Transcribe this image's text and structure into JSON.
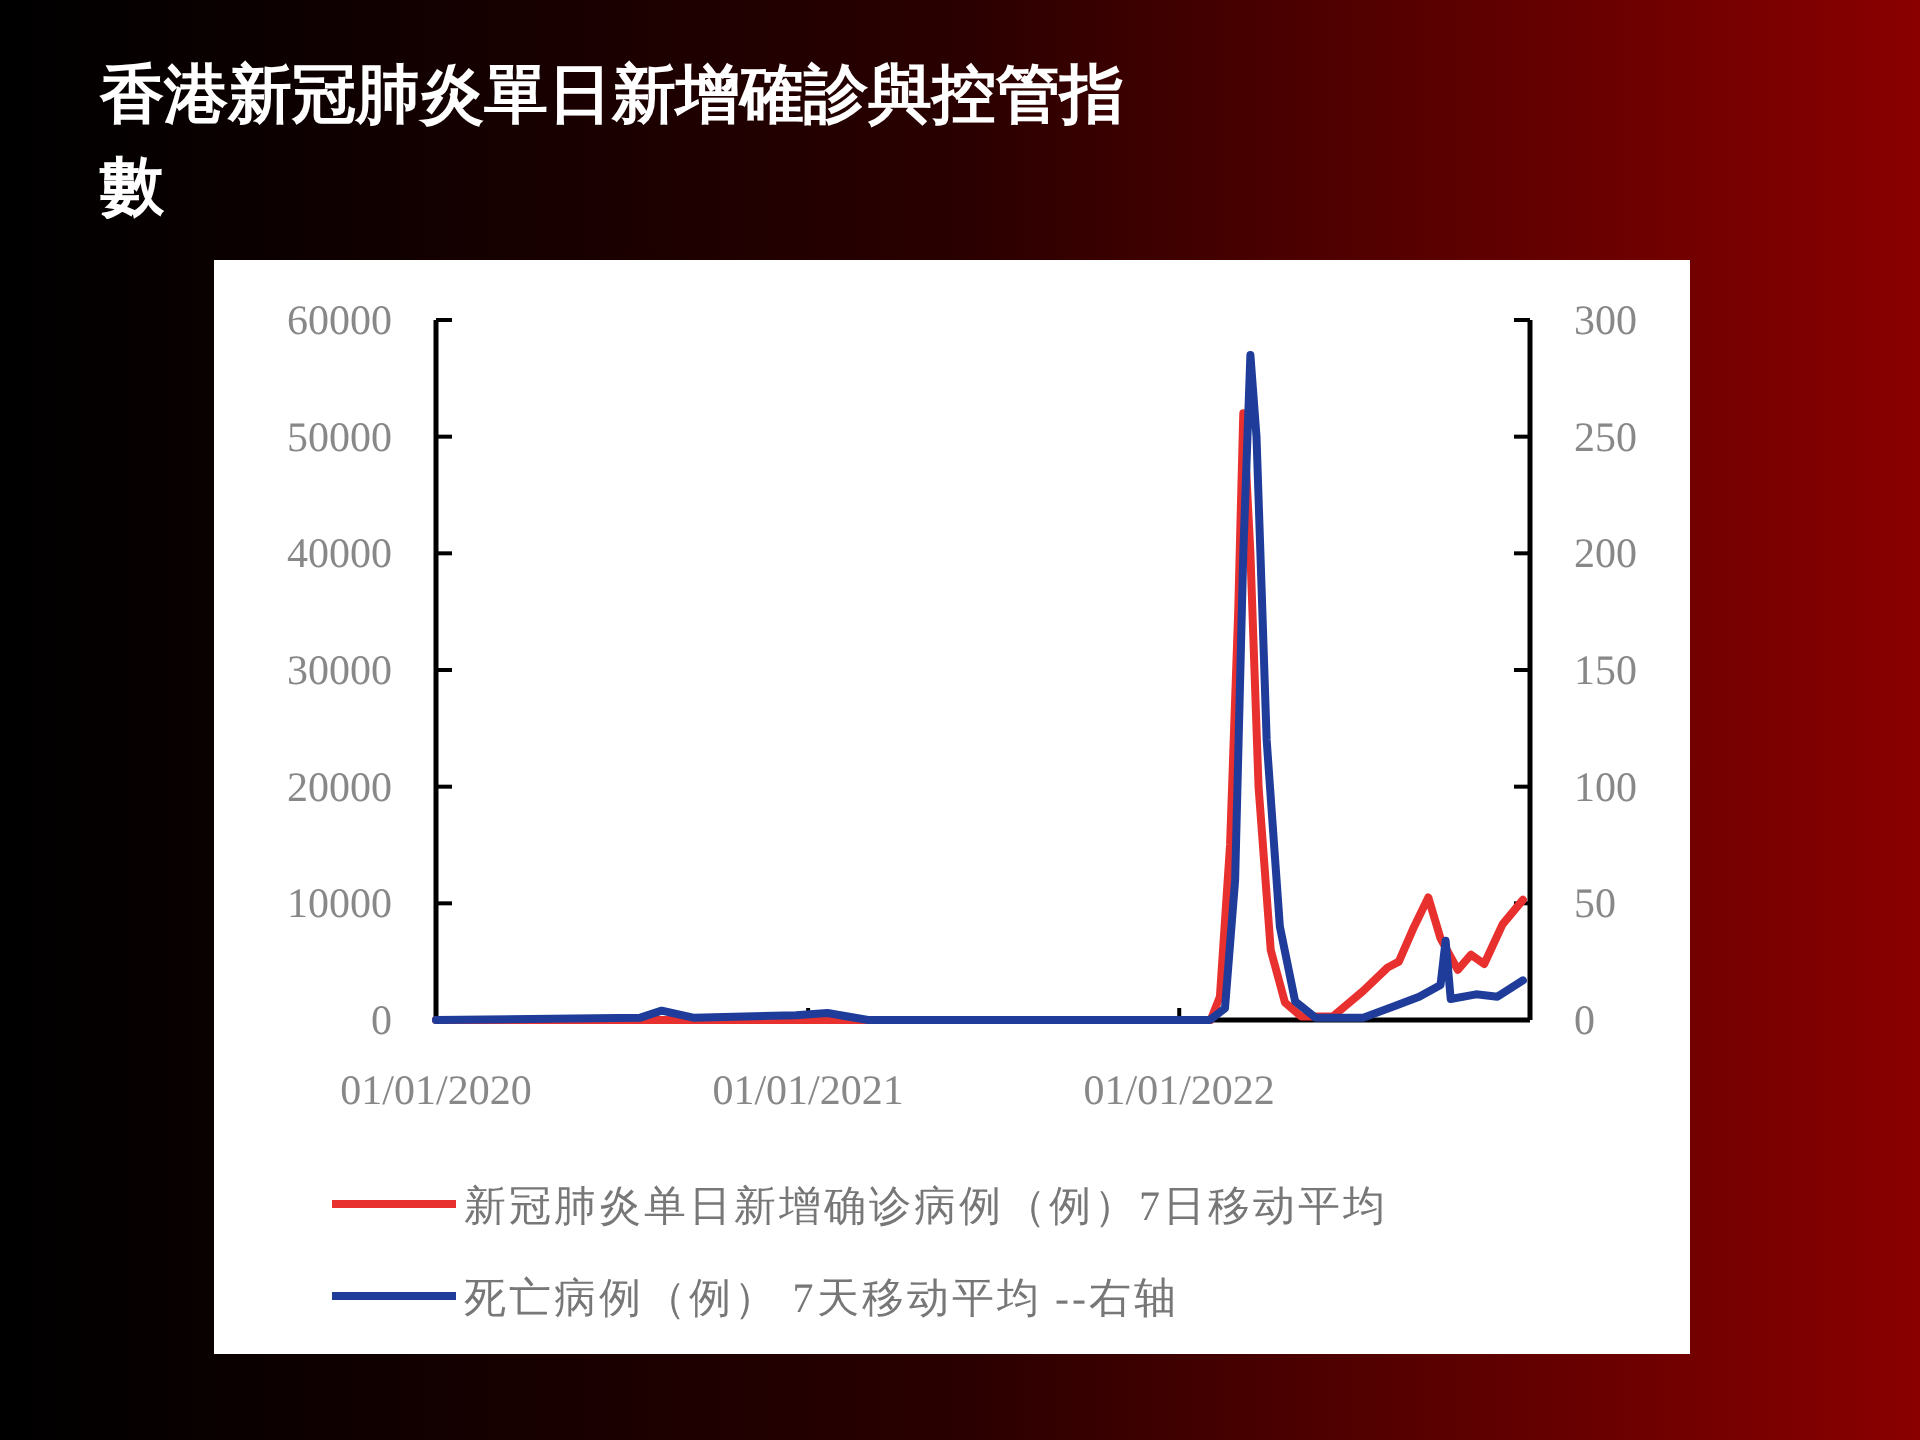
{
  "chart_data": {
    "type": "line",
    "title": "香港新冠肺炎單日新增確診與控管指數",
    "xlim": [
      "2020-01-01",
      "2022-12-12"
    ],
    "xticks": [
      {
        "value": "2020-01-01",
        "label": "01/01/2020"
      },
      {
        "value": "2021-01-01",
        "label": "01/01/2021"
      },
      {
        "value": "2022-01-01",
        "label": "01/01/2022"
      }
    ],
    "ylim": [
      0,
      60000
    ],
    "yticks": [
      0,
      10000,
      20000,
      30000,
      40000,
      50000,
      60000
    ],
    "y2lim": [
      0,
      300
    ],
    "y2ticks": [
      0,
      50,
      100,
      150,
      200,
      250,
      300
    ],
    "legend": "bottom",
    "grid": false,
    "marker": "none",
    "line_style": "solid",
    "series": [
      {
        "name": "新冠肺炎单日新增确诊病例（例）7日移动平均",
        "color": "#e8312f",
        "x": [
          "2020-01-01",
          "2020-07-01",
          "2020-08-01",
          "2020-09-01",
          "2020-12-10",
          "2021-01-01",
          "2021-03-01",
          "2021-12-31",
          "2022-02-01",
          "2022-02-10",
          "2022-02-20",
          "2022-02-28",
          "2022-03-05",
          "2022-03-12",
          "2022-03-20",
          "2022-04-01",
          "2022-04-15",
          "2022-05-01",
          "2022-06-01",
          "2022-07-01",
          "2022-07-25",
          "2022-08-05",
          "2022-08-20",
          "2022-09-03",
          "2022-09-15",
          "2022-10-02",
          "2022-10-15",
          "2022-10-28",
          "2022-11-15",
          "2022-12-05"
        ],
        "values": [
          0,
          0,
          0,
          0,
          0,
          0,
          0,
          0,
          0,
          2000,
          15000,
          35000,
          52000,
          40000,
          20000,
          6000,
          1500,
          300,
          300,
          2500,
          4500,
          5000,
          8000,
          10500,
          7000,
          4300,
          5600,
          4800,
          8200,
          10300
        ]
      },
      {
        "name": "死亡病例（例） 7天移动平均 --右轴",
        "color": "#1f3c9a",
        "axis": "y2",
        "x": [
          "2020-01-01",
          "2020-07-20",
          "2020-08-10",
          "2020-09-10",
          "2020-12-20",
          "2021-01-20",
          "2021-03-01",
          "2022-01-31",
          "2022-02-15",
          "2022-02-25",
          "2022-03-05",
          "2022-03-12",
          "2022-03-18",
          "2022-03-28",
          "2022-04-10",
          "2022-04-25",
          "2022-05-15",
          "2022-07-01",
          "2022-08-01",
          "2022-08-25",
          "2022-09-15",
          "2022-09-20",
          "2022-09-25",
          "2022-10-20",
          "2022-11-10",
          "2022-12-05"
        ],
        "values": [
          0,
          1,
          4,
          1,
          2,
          3,
          0,
          0,
          5,
          60,
          200,
          285,
          250,
          120,
          40,
          8,
          1,
          1,
          6,
          10,
          15,
          34,
          9,
          11,
          10,
          17
        ]
      }
    ]
  }
}
